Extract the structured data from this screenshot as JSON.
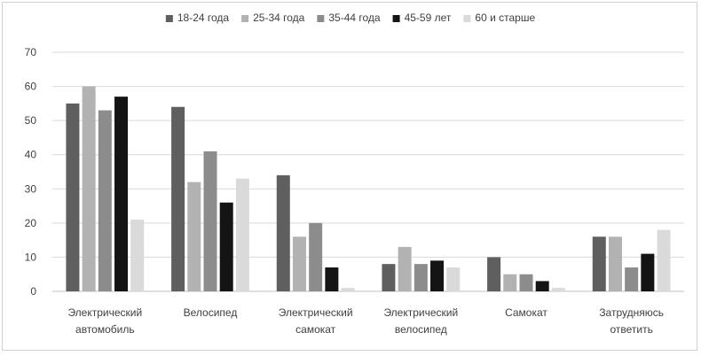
{
  "chart_data": {
    "type": "bar",
    "title": "",
    "xlabel": "",
    "ylabel": "",
    "ylim": [
      0,
      70
    ],
    "yticks": [
      0,
      10,
      20,
      30,
      40,
      50,
      60,
      70
    ],
    "grid": true,
    "legend_position": "top",
    "categories": [
      [
        "Электрический",
        "автомобиль"
      ],
      [
        "Велосипед"
      ],
      [
        "Электрический",
        "самокат"
      ],
      [
        "Электрический",
        "велосипед"
      ],
      [
        "Самокат"
      ],
      [
        "Затрудняюсь",
        "ответить"
      ]
    ],
    "series": [
      {
        "name": "18-24 года",
        "color": "#5f5f5f",
        "values": [
          55,
          54,
          34,
          8,
          10,
          16
        ]
      },
      {
        "name": "25-34 года",
        "color": "#b2b2b2",
        "values": [
          60,
          32,
          16,
          13,
          5,
          16
        ]
      },
      {
        "name": "35-44 года",
        "color": "#8c8c8c",
        "values": [
          53,
          41,
          20,
          8,
          5,
          7
        ]
      },
      {
        "name": "45-59 лет",
        "color": "#141414",
        "values": [
          57,
          26,
          7,
          9,
          3,
          11
        ]
      },
      {
        "name": "60 и старше",
        "color": "#dadada",
        "values": [
          21,
          33,
          1,
          7,
          1,
          18
        ]
      }
    ]
  }
}
